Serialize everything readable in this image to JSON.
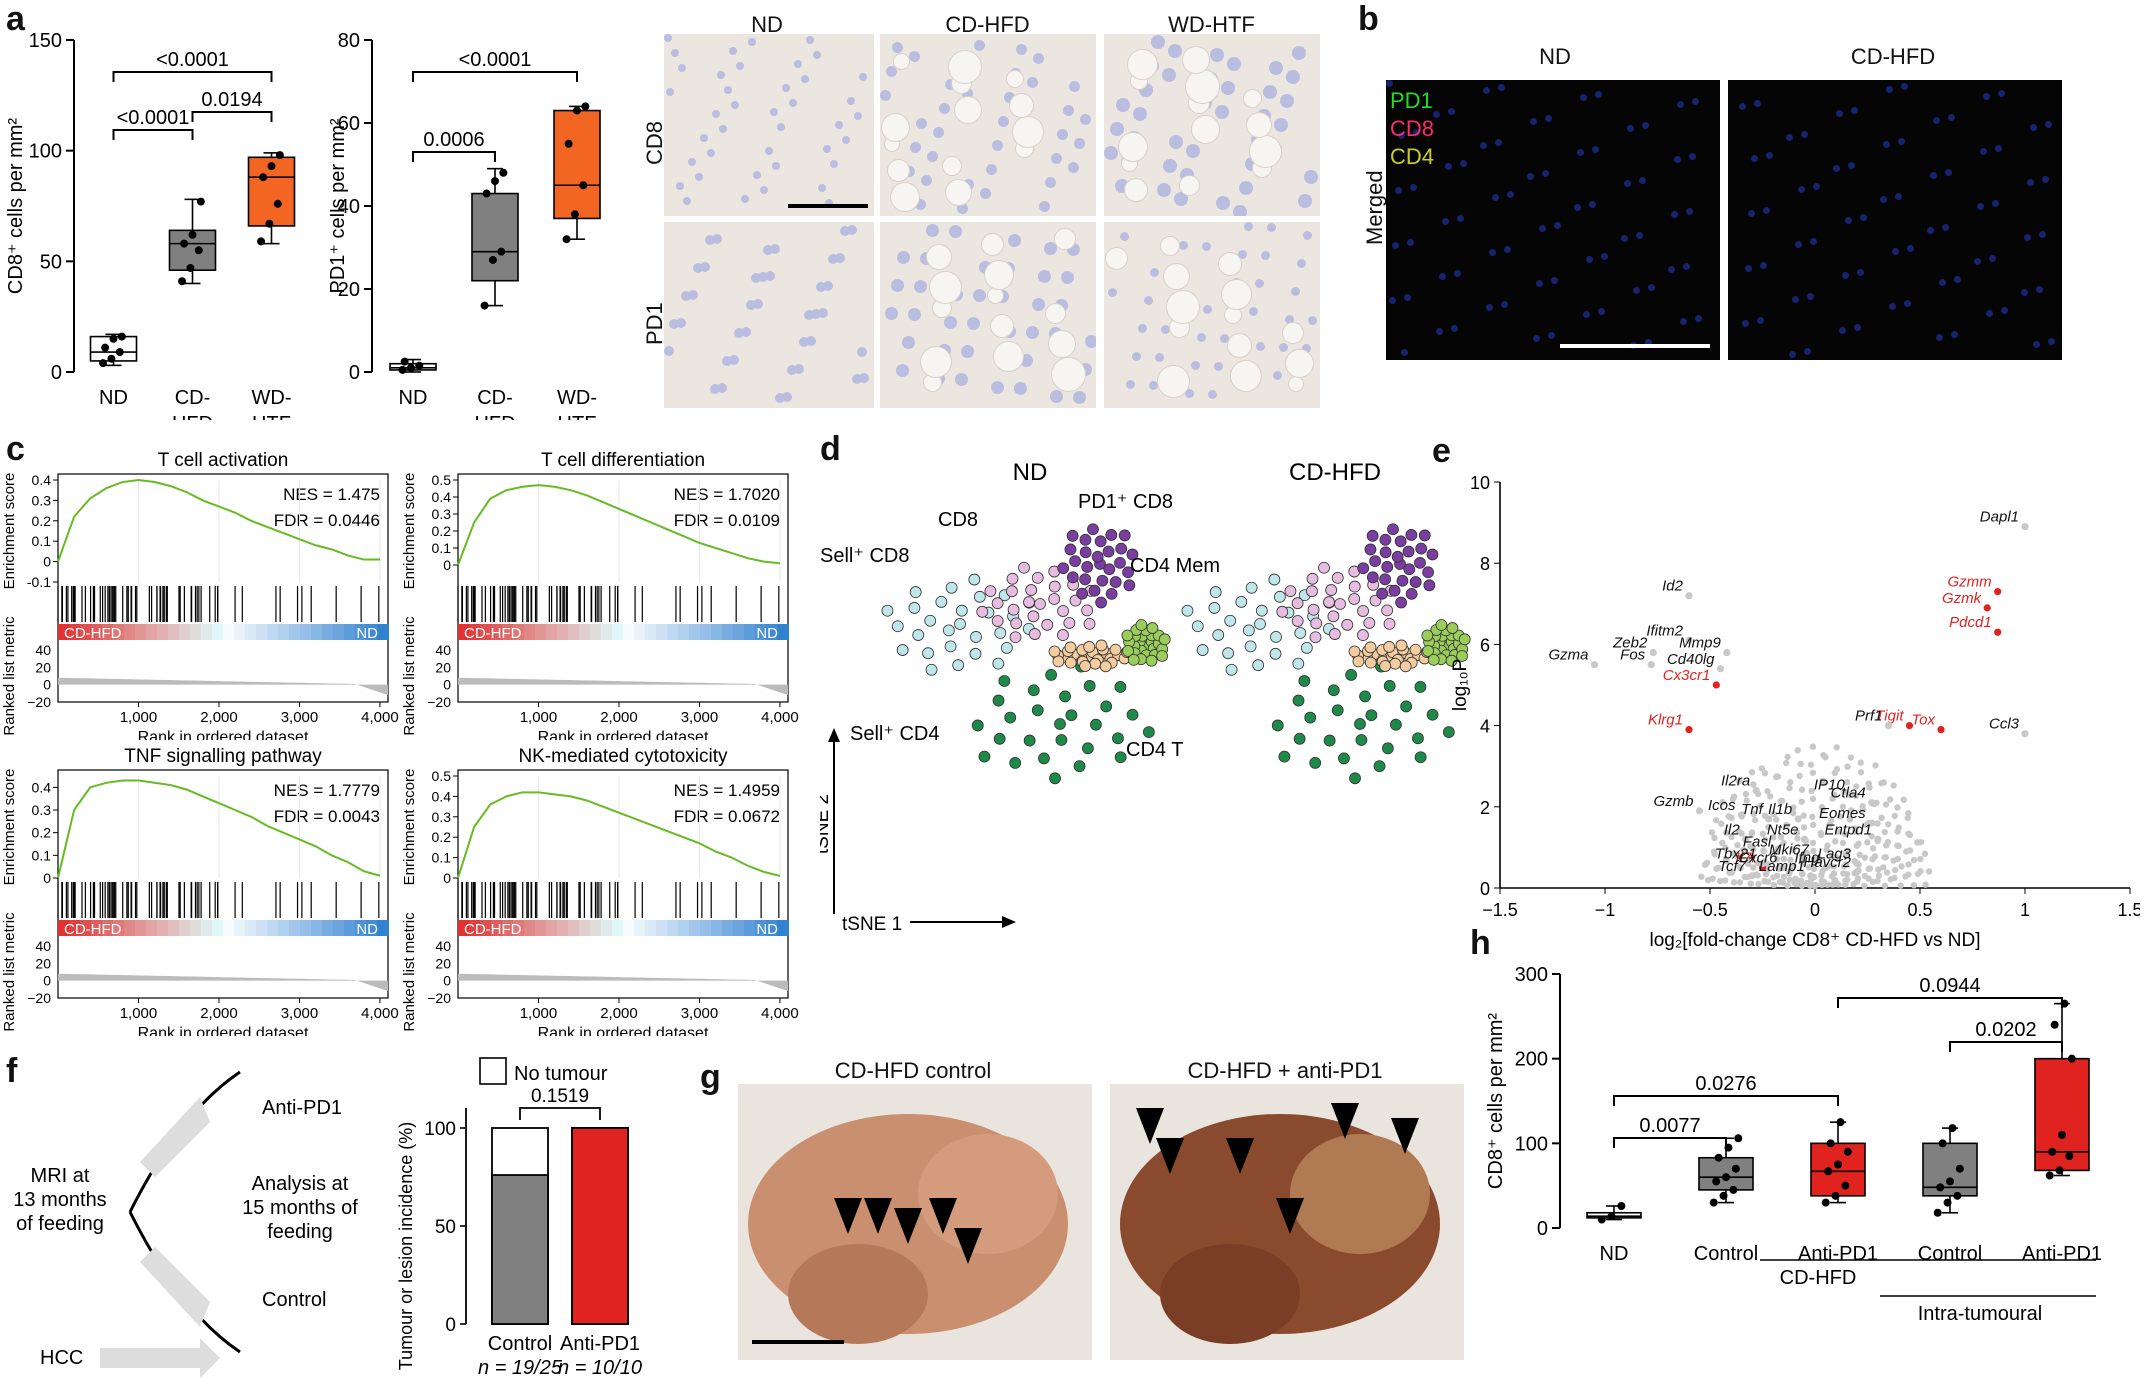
{
  "panels": {
    "a": {
      "letter": "a"
    },
    "b": {
      "letter": "b"
    },
    "c": {
      "letter": "c"
    },
    "d": {
      "letter": "d"
    },
    "e": {
      "letter": "e"
    },
    "f": {
      "letter": "f"
    },
    "g": {
      "letter": "g"
    },
    "h": {
      "letter": "h"
    }
  },
  "micro_a": {
    "cols": [
      "ND",
      "CD-HFD",
      "WD-HTF"
    ],
    "rows": [
      "CD8",
      "PD1"
    ]
  },
  "fluor_b": {
    "cols": [
      "ND",
      "CD-HFD"
    ],
    "row": "Merged",
    "legend": [
      {
        "label": "PD1",
        "color": "#22dd22"
      },
      {
        "label": "CD8",
        "color": "#ff2a6a"
      },
      {
        "label": "CD4",
        "color": "#c9cf22"
      }
    ]
  },
  "tsne_d": {
    "col_titles": [
      "ND",
      "CD-HFD"
    ],
    "labels": [
      {
        "id": "pd1cd8",
        "text": "PD1⁺ CD8"
      },
      {
        "id": "cd8",
        "text": "CD8"
      },
      {
        "id": "sellcd8",
        "text": "Sell⁺ CD8"
      },
      {
        "id": "cd4mem",
        "text": "CD4 Mem"
      },
      {
        "id": "cd4th",
        "text": "CD4 T"
      },
      {
        "id": "sellcd4",
        "text": "Sell⁺ CD4"
      }
    ],
    "axis_y": "tSNE 2",
    "axis_x": "tSNE 1"
  },
  "scheme_f": {
    "items": [
      "Anti-PD1",
      "Control",
      "HCC"
    ],
    "mri": [
      "MRI at",
      "13 months",
      "of feeding"
    ],
    "analysis": [
      "Analysis at",
      "15 months of",
      "feeding"
    ]
  },
  "photos_g": {
    "titles": [
      "CD-HFD control",
      "CD-HFD + anti-PD1"
    ]
  },
  "colors": {
    "white_box": "#ffffff",
    "grey_box": "#808080",
    "orange_box": "#f26522",
    "red_box": "#e0231f",
    "gsea_line": "#66bb22",
    "volcano_sig": "#e0231f",
    "volcano_ns": "#bdbdbd"
  },
  "chart_data": [
    {
      "id": "a1",
      "type": "box",
      "categories": [
        "ND",
        "CD-HFD",
        "WD-HTF"
      ],
      "ylabel": "CD8⁺ cells per mm²",
      "ylim": [
        0,
        150
      ],
      "yticks": [
        0,
        50,
        100,
        150
      ],
      "boxes": [
        {
          "q1": 5,
          "median": 9,
          "q3": 16,
          "min": 3,
          "max": 17,
          "color": "#ffffff",
          "points": [
            4,
            6,
            9,
            11,
            15,
            16
          ]
        },
        {
          "q1": 46,
          "median": 58,
          "q3": 64,
          "min": 40,
          "max": 78,
          "color": "#808080",
          "points": [
            41,
            47,
            55,
            58,
            62,
            77
          ]
        },
        {
          "q1": 66,
          "median": 88,
          "q3": 97,
          "min": 58,
          "max": 99,
          "color": "#f26522",
          "points": [
            59,
            67,
            76,
            88,
            93,
            98
          ]
        }
      ],
      "comparisons": [
        {
          "from": 0,
          "to": 1,
          "label": "<0.0001"
        },
        {
          "from": 1,
          "to": 2,
          "label": "0.0194"
        },
        {
          "from": 0,
          "to": 2,
          "label": "<0.0001"
        }
      ]
    },
    {
      "id": "a2",
      "type": "box",
      "categories": [
        "ND",
        "CD-HFD",
        "WD-HTF"
      ],
      "ylabel": "PD1⁺ cells per mm²",
      "ylim": [
        0,
        80
      ],
      "yticks": [
        0,
        20,
        40,
        60,
        80
      ],
      "boxes": [
        {
          "q1": 0.5,
          "median": 1,
          "q3": 2,
          "min": 0,
          "max": 3,
          "color": "#ffffff",
          "points": [
            0.5,
            1,
            1.5,
            2.5
          ]
        },
        {
          "q1": 22,
          "median": 29,
          "q3": 43,
          "min": 16,
          "max": 49,
          "color": "#808080",
          "points": [
            16,
            27,
            29,
            43,
            46,
            48
          ]
        },
        {
          "q1": 37,
          "median": 45,
          "q3": 63,
          "min": 32,
          "max": 64,
          "color": "#f26522",
          "points": [
            32,
            38,
            45,
            55,
            63,
            64
          ]
        }
      ],
      "comparisons": [
        {
          "from": 0,
          "to": 1,
          "label": "0.0006"
        },
        {
          "from": 0,
          "to": 2,
          "label": "<0.0001"
        }
      ]
    },
    {
      "id": "c1",
      "type": "line",
      "title": "T cell activation",
      "nes": "NES = 1.475",
      "fdr": "FDR = 0.0446",
      "ylabel": "Enrichment score",
      "ylabel2": "Ranked list metric",
      "xlabel": "Rank in ordered dataset",
      "ylim": [
        -0.1,
        0.4
      ],
      "yticks": [
        -0.1,
        0,
        0.1,
        0.2,
        0.3,
        0.4
      ],
      "xticks": [
        "1,000",
        "2,000",
        "3,000",
        "4,000"
      ],
      "metric_ticks": [
        "40",
        "20",
        "0",
        "−20"
      ],
      "left_label": "CD-HFD",
      "right_label": "ND",
      "x": [
        0,
        200,
        400,
        600,
        800,
        1000,
        1200,
        1400,
        1600,
        1800,
        2000,
        2200,
        2400,
        2600,
        2800,
        3000,
        3200,
        3400,
        3600,
        3800,
        4000
      ],
      "y": [
        0,
        0.22,
        0.31,
        0.36,
        0.39,
        0.4,
        0.39,
        0.37,
        0.34,
        0.3,
        0.27,
        0.24,
        0.2,
        0.17,
        0.14,
        0.11,
        0.08,
        0.06,
        0.03,
        0.01,
        0.01
      ]
    },
    {
      "id": "c2",
      "type": "line",
      "title": "T cell differentiation",
      "nes": "NES = 1.7020",
      "fdr": "FDR = 0.0109",
      "ylabel": "Enrichment score",
      "ylabel2": "Ranked list metric",
      "xlabel": "Rank in ordered dataset",
      "ylim": [
        -0.1,
        0.5
      ],
      "yticks": [
        0,
        0.1,
        0.2,
        0.3,
        0.4,
        0.5
      ],
      "xticks": [
        "1,000",
        "2,000",
        "3,000",
        "4,000"
      ],
      "metric_ticks": [
        "40",
        "20",
        "0",
        "−20"
      ],
      "left_label": "CD-HFD",
      "right_label": "ND",
      "x": [
        0,
        200,
        400,
        600,
        800,
        1000,
        1200,
        1400,
        1600,
        1800,
        2000,
        2200,
        2400,
        2600,
        2800,
        3000,
        3200,
        3400,
        3600,
        3800,
        4000
      ],
      "y": [
        0,
        0.25,
        0.39,
        0.44,
        0.46,
        0.47,
        0.46,
        0.44,
        0.41,
        0.37,
        0.33,
        0.29,
        0.25,
        0.21,
        0.17,
        0.13,
        0.1,
        0.07,
        0.04,
        0.02,
        0.01
      ]
    },
    {
      "id": "c3",
      "type": "line",
      "title": "TNF signalling pathway",
      "nes": "NES = 1.7779",
      "fdr": "FDR = 0.0043",
      "ylabel": "Enrichment score",
      "ylabel2": "Ranked list metric",
      "xlabel": "Rank in ordered dataset",
      "ylim": [
        0,
        0.45
      ],
      "yticks": [
        0,
        0.1,
        0.2,
        0.3,
        0.4
      ],
      "xticks": [
        "1,000",
        "2,000",
        "3,000",
        "4,000"
      ],
      "metric_ticks": [
        "40",
        "20",
        "0",
        "−20"
      ],
      "left_label": "CD-HFD",
      "right_label": "ND",
      "x": [
        0,
        200,
        400,
        600,
        800,
        1000,
        1200,
        1400,
        1600,
        1800,
        2000,
        2200,
        2400,
        2600,
        2800,
        3000,
        3200,
        3400,
        3600,
        3800,
        4000
      ],
      "y": [
        0,
        0.3,
        0.4,
        0.42,
        0.43,
        0.43,
        0.42,
        0.41,
        0.39,
        0.36,
        0.33,
        0.3,
        0.27,
        0.23,
        0.2,
        0.17,
        0.14,
        0.1,
        0.07,
        0.03,
        0.01
      ]
    },
    {
      "id": "c4",
      "type": "line",
      "title": "NK-mediated cytotoxicity",
      "nes": "NES = 1.4959",
      "fdr": "FDR = 0.0672",
      "ylabel": "Enrichment score",
      "ylabel2": "Ranked list metric",
      "xlabel": "Rank in ordered dataset",
      "ylim": [
        0,
        0.5
      ],
      "yticks": [
        0,
        0.1,
        0.2,
        0.3,
        0.4,
        0.5
      ],
      "xticks": [
        "1,000",
        "2,000",
        "3,000",
        "4,000"
      ],
      "metric_ticks": [
        "40",
        "20",
        "0",
        "−20"
      ],
      "left_label": "CD-HFD",
      "right_label": "ND",
      "x": [
        0,
        200,
        400,
        600,
        800,
        1000,
        1200,
        1400,
        1600,
        1800,
        2000,
        2200,
        2400,
        2600,
        2800,
        3000,
        3200,
        3400,
        3600,
        3800,
        4000
      ],
      "y": [
        0,
        0.25,
        0.36,
        0.4,
        0.42,
        0.42,
        0.41,
        0.4,
        0.38,
        0.35,
        0.32,
        0.29,
        0.26,
        0.23,
        0.2,
        0.17,
        0.13,
        0.1,
        0.06,
        0.03,
        0.01
      ]
    },
    {
      "id": "e",
      "type": "scatter",
      "xlabel": "log₂[fold-change CD8⁺ CD-HFD vs ND]",
      "ylabel": "log₁₀P",
      "xlim": [
        -1.5,
        1.5
      ],
      "ylim": [
        0,
        10
      ],
      "xticks": [
        -1.5,
        -1,
        -0.5,
        0,
        0.5,
        1,
        1.5
      ],
      "yticks": [
        0,
        2,
        4,
        6,
        8,
        10
      ],
      "genes": [
        {
          "name": "Dapl1",
          "x": 1.0,
          "y": 8.9,
          "red": false
        },
        {
          "name": "Gzmm",
          "x": 0.87,
          "y": 7.3,
          "red": true
        },
        {
          "name": "Gzmk",
          "x": 0.82,
          "y": 6.9,
          "red": true
        },
        {
          "name": "Pdcd1",
          "x": 0.87,
          "y": 6.3,
          "red": true
        },
        {
          "name": "Ccl3",
          "x": 1.0,
          "y": 3.8,
          "red": false
        },
        {
          "name": "Tigit",
          "x": 0.45,
          "y": 4.0,
          "red": true
        },
        {
          "name": "Tox",
          "x": 0.6,
          "y": 3.9,
          "red": true
        },
        {
          "name": "Prf1",
          "x": 0.35,
          "y": 4.0,
          "red": false
        },
        {
          "name": "Id2",
          "x": -0.6,
          "y": 7.2,
          "red": false
        },
        {
          "name": "Zeb2",
          "x": -0.77,
          "y": 5.8,
          "red": false
        },
        {
          "name": "Ifitm2",
          "x": -0.6,
          "y": 6.1,
          "red": false
        },
        {
          "name": "Mmp9",
          "x": -0.42,
          "y": 5.8,
          "red": false
        },
        {
          "name": "Cd40lg",
          "x": -0.45,
          "y": 5.4,
          "red": false
        },
        {
          "name": "Fos",
          "x": -0.78,
          "y": 5.5,
          "red": false
        },
        {
          "name": "Gzma",
          "x": -1.05,
          "y": 5.5,
          "red": false
        },
        {
          "name": "Cx3cr1",
          "x": -0.47,
          "y": 5.0,
          "red": true
        },
        {
          "name": "Klrg1",
          "x": -0.6,
          "y": 3.9,
          "red": true
        },
        {
          "name": "IP10",
          "x": 0.17,
          "y": 2.3,
          "red": false
        },
        {
          "name": "Ctla4",
          "x": 0.27,
          "y": 2.1,
          "red": false
        },
        {
          "name": "Eomes",
          "x": 0.27,
          "y": 1.6,
          "red": false
        },
        {
          "name": "Entpd1",
          "x": 0.3,
          "y": 1.2,
          "red": false
        },
        {
          "name": "Il2ra",
          "x": -0.28,
          "y": 2.4,
          "red": false
        },
        {
          "name": "Gzmb",
          "x": -0.55,
          "y": 1.9,
          "red": false
        },
        {
          "name": "Icos",
          "x": -0.35,
          "y": 1.8,
          "red": false
        },
        {
          "name": "Tnf",
          "x": -0.22,
          "y": 1.7,
          "red": false
        },
        {
          "name": "Il1b",
          "x": -0.08,
          "y": 1.7,
          "red": false
        },
        {
          "name": "Il2",
          "x": -0.33,
          "y": 1.2,
          "red": false
        },
        {
          "name": "Nt5e",
          "x": -0.05,
          "y": 1.2,
          "red": false
        },
        {
          "name": "Fasl",
          "x": -0.18,
          "y": 0.9,
          "red": false
        },
        {
          "name": "Mki67",
          "x": 0.0,
          "y": 0.7,
          "red": false
        },
        {
          "name": "Il7r",
          "x": -0.25,
          "y": 0.5,
          "red": true
        },
        {
          "name": "Ifng",
          "x": 0.05,
          "y": 0.5,
          "red": false
        },
        {
          "name": "Lag3",
          "x": 0.2,
          "y": 0.6,
          "red": false
        },
        {
          "name": "Havcr2",
          "x": 0.2,
          "y": 0.4,
          "red": false
        },
        {
          "name": "Tbx21",
          "x": -0.25,
          "y": 0.6,
          "red": false
        },
        {
          "name": "Cxcr6",
          "x": -0.15,
          "y": 0.5,
          "red": false
        },
        {
          "name": "Tcf7",
          "x": -0.3,
          "y": 0.3,
          "red": false
        },
        {
          "name": "Lamp1",
          "x": -0.02,
          "y": 0.3,
          "red": false
        }
      ]
    },
    {
      "id": "f2",
      "type": "bar",
      "categories": [
        "Control",
        "Anti-PD1"
      ],
      "ylabel": "Tumour or lesion incidence (%)",
      "ylim": [
        0,
        100
      ],
      "yticks": [
        0,
        50,
        100
      ],
      "values": [
        76,
        100
      ],
      "colors": [
        "#808080",
        "#e0231f"
      ],
      "n_labels": [
        "n = 19/25",
        "n = 10/10"
      ],
      "legend": "No tumour",
      "comparison": "0.1519"
    },
    {
      "id": "h",
      "type": "box",
      "categories": [
        "ND",
        "Control",
        "Anti-PD1",
        "Control",
        "Anti-PD1"
      ],
      "ylabel": "CD8⁺ cells per mm²",
      "ylim": [
        0,
        300
      ],
      "yticks": [
        0,
        100,
        200,
        300
      ],
      "group_labels": [
        "CD-HFD",
        "Intra-tumoural"
      ],
      "boxes": [
        {
          "q1": 12,
          "median": 14,
          "q3": 18,
          "min": 10,
          "max": 26,
          "color": "#ffffff",
          "points": [
            10,
            14,
            26
          ]
        },
        {
          "q1": 45,
          "median": 60,
          "q3": 83,
          "min": 30,
          "max": 106,
          "color": "#808080",
          "points": [
            30,
            38,
            45,
            55,
            60,
            70,
            83,
            95,
            106
          ]
        },
        {
          "q1": 38,
          "median": 67,
          "q3": 100,
          "min": 30,
          "max": 125,
          "color": "#e0231f",
          "points": [
            30,
            38,
            50,
            67,
            75,
            90,
            100,
            125
          ]
        },
        {
          "q1": 38,
          "median": 48,
          "q3": 100,
          "min": 18,
          "max": 118,
          "color": "#808080",
          "points": [
            18,
            30,
            38,
            48,
            55,
            70,
            100,
            118
          ]
        },
        {
          "q1": 68,
          "median": 90,
          "q3": 200,
          "min": 62,
          "max": 265,
          "color": "#e0231f",
          "points": [
            62,
            68,
            85,
            90,
            110,
            200,
            240,
            265
          ]
        }
      ],
      "comparisons": [
        {
          "from": 0,
          "to": 1,
          "label": "0.0077"
        },
        {
          "from": 0,
          "to": 2,
          "label": "0.0276"
        },
        {
          "from": 3,
          "to": 4,
          "label": "0.0202"
        },
        {
          "from": 2,
          "to": 4,
          "label": "0.0944"
        }
      ]
    }
  ]
}
